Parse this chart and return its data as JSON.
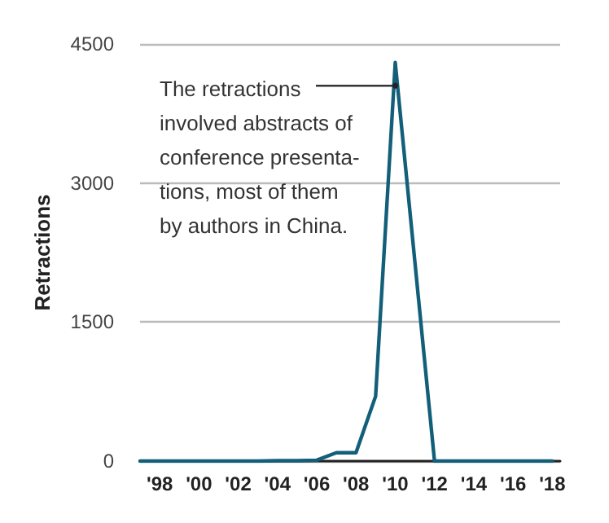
{
  "chart_data": {
    "type": "line",
    "ylabel": "Retractions",
    "x": [
      1997,
      1998,
      1999,
      2000,
      2001,
      2002,
      2003,
      2004,
      2005,
      2006,
      2007,
      2008,
      2009,
      2010,
      2011,
      2012,
      2013,
      2014,
      2015,
      2016,
      2017,
      2018
    ],
    "series": [
      {
        "color": "#135f7a",
        "values": [
          0,
          0,
          0,
          0,
          0,
          0,
          0,
          5,
          5,
          10,
          90,
          90,
          700,
          4300,
          2150,
          0,
          0,
          0,
          0,
          0,
          0,
          0
        ]
      }
    ],
    "xlim": [
      1997,
      2018.4
    ],
    "xticks": [
      {
        "value": 1998,
        "label": "'98"
      },
      {
        "value": 2000,
        "label": "'00"
      },
      {
        "value": 2002,
        "label": "'02"
      },
      {
        "value": 2004,
        "label": "'04"
      },
      {
        "value": 2006,
        "label": "'06"
      },
      {
        "value": 2008,
        "label": "'08"
      },
      {
        "value": 2010,
        "label": "'10"
      },
      {
        "value": 2012,
        "label": "'12"
      },
      {
        "value": 2014,
        "label": "'14"
      },
      {
        "value": 2016,
        "label": "'16"
      },
      {
        "value": 2018,
        "label": "'18"
      }
    ],
    "ylim": [
      0,
      4500
    ],
    "yticks": [
      0,
      1500,
      3000,
      4500
    ],
    "grid": "y",
    "marker": "none",
    "line_style": "solid",
    "annotations": [
      {
        "text": "The retractions\ninvolved abstracts of\nconference presenta-\ntions, most of them\nby authors in China.",
        "x": 2010,
        "y": 4050
      }
    ]
  }
}
